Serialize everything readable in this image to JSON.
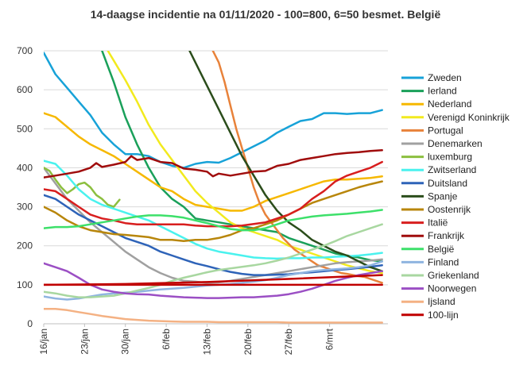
{
  "chart_data": {
    "type": "line",
    "title": "14-daagse incidentie na 01/11/2020 - 100=800, 6=50 besmet. België",
    "xlabel": "",
    "ylabel": "",
    "ylim": [
      0,
      700
    ],
    "yticks": [
      0,
      100,
      200,
      300,
      400,
      500,
      600,
      700
    ],
    "xlim": [
      0,
      59
    ],
    "xtick_labels": [
      "16/jan",
      "23/jan",
      "30/jan",
      "6/feb",
      "13/feb",
      "20/feb",
      "27/feb",
      "6/mrt"
    ],
    "xtick_positions": [
      0,
      7,
      14,
      21,
      28,
      35,
      42,
      49
    ],
    "grid": "horizontal",
    "legend_position": "right",
    "series": [
      {
        "name": "Zweden",
        "color": "#17a2d8",
        "x": [
          0,
          2,
          4,
          6,
          8,
          10,
          12,
          14,
          16,
          18,
          20,
          22,
          24,
          26,
          28,
          30,
          32,
          34,
          36,
          38,
          40,
          42,
          44,
          46,
          48,
          50,
          52,
          54,
          56,
          58
        ],
        "values": [
          695,
          640,
          605,
          570,
          535,
          490,
          460,
          435,
          435,
          430,
          415,
          405,
          400,
          410,
          415,
          413,
          425,
          440,
          455,
          470,
          490,
          505,
          520,
          525,
          540,
          540,
          538,
          540,
          540,
          548
        ]
      },
      {
        "name": "Ierland",
        "color": "#1aa05a",
        "x": [
          10,
          12,
          14,
          16,
          18,
          20,
          22,
          24,
          26,
          28,
          30,
          32,
          34,
          36,
          38,
          40,
          42,
          44,
          46,
          48,
          50,
          52,
          54,
          56,
          58
        ],
        "values": [
          700,
          620,
          530,
          460,
          400,
          350,
          320,
          300,
          270,
          265,
          260,
          255,
          250,
          245,
          240,
          235,
          220,
          210,
          200,
          190,
          180,
          175,
          170,
          163,
          160
        ]
      },
      {
        "name": "Nederland",
        "color": "#f6b800",
        "x": [
          0,
          2,
          4,
          6,
          8,
          10,
          12,
          14,
          16,
          18,
          20,
          22,
          24,
          26,
          28,
          30,
          32,
          34,
          36,
          38,
          40,
          42,
          44,
          46,
          48,
          50,
          52,
          54,
          56,
          58
        ],
        "values": [
          540,
          530,
          505,
          480,
          460,
          445,
          430,
          410,
          390,
          370,
          350,
          340,
          320,
          305,
          300,
          295,
          290,
          290,
          300,
          315,
          325,
          335,
          345,
          355,
          365,
          370,
          370,
          372,
          374,
          378
        ]
      },
      {
        "name": "Verenigd Koninkrijk",
        "color": "#f2ea1e",
        "x": [
          11,
          12,
          14,
          16,
          18,
          20,
          22,
          24,
          26,
          28,
          30,
          32,
          34,
          36,
          38,
          40,
          42,
          44,
          46,
          48,
          50,
          52,
          54,
          56,
          58
        ],
        "values": [
          700,
          675,
          625,
          570,
          510,
          460,
          420,
          380,
          340,
          310,
          285,
          260,
          245,
          235,
          225,
          215,
          200,
          190,
          180,
          170,
          160,
          150,
          142,
          135,
          130
        ]
      },
      {
        "name": "Portugal",
        "color": "#e8823a",
        "x": [
          29,
          30,
          31,
          32,
          33,
          34,
          35,
          36,
          37,
          38,
          39,
          40,
          41,
          42,
          43,
          44,
          45,
          46,
          47,
          48,
          49,
          50,
          51,
          52,
          53,
          54,
          55,
          56,
          57,
          58
        ],
        "values": [
          700,
          670,
          620,
          560,
          500,
          450,
          400,
          350,
          310,
          280,
          260,
          240,
          220,
          205,
          190,
          180,
          170,
          160,
          150,
          145,
          140,
          135,
          130,
          128,
          125,
          122,
          120,
          115,
          110,
          105
        ]
      },
      {
        "name": "Denemarken",
        "color": "#a0a0a0",
        "x": [
          0,
          2,
          4,
          6,
          8,
          10,
          12,
          14,
          16,
          18,
          20,
          22,
          24,
          26,
          28,
          30,
          32,
          34,
          36,
          38,
          40,
          42,
          44,
          46,
          48,
          50,
          52,
          54,
          56,
          58
        ],
        "values": [
          400,
          360,
          320,
          290,
          260,
          235,
          210,
          185,
          165,
          145,
          130,
          118,
          110,
          108,
          105,
          106,
          110,
          115,
          120,
          125,
          130,
          135,
          140,
          145,
          150,
          155,
          158,
          160,
          162,
          165
        ]
      },
      {
        "name": "luxemburg",
        "color": "#8cbf3f",
        "x": [
          0,
          1,
          2,
          3,
          4,
          5,
          6,
          7,
          8,
          9,
          10,
          11,
          12,
          13
        ],
        "values": [
          400,
          392,
          370,
          350,
          335,
          345,
          358,
          362,
          350,
          330,
          320,
          305,
          300,
          318
        ]
      },
      {
        "name": "Zwitserland",
        "color": "#4af2ee",
        "x": [
          0,
          2,
          4,
          6,
          8,
          10,
          12,
          14,
          16,
          18,
          20,
          22,
          24,
          26,
          28,
          30,
          32,
          34,
          36,
          38,
          40,
          42,
          44,
          46,
          48,
          50,
          52,
          54,
          56,
          58
        ],
        "values": [
          418,
          410,
          380,
          345,
          320,
          305,
          295,
          285,
          275,
          265,
          250,
          235,
          220,
          205,
          193,
          185,
          180,
          175,
          170,
          168,
          167,
          168,
          168,
          170,
          170,
          172,
          173,
          175,
          178,
          182
        ]
      },
      {
        "name": "Duitsland",
        "color": "#2e63b8",
        "x": [
          0,
          2,
          4,
          6,
          8,
          10,
          12,
          14,
          16,
          18,
          20,
          22,
          24,
          26,
          28,
          30,
          32,
          34,
          36,
          38,
          40,
          42,
          44,
          46,
          48,
          50,
          52,
          54,
          56,
          58
        ],
        "values": [
          330,
          320,
          300,
          280,
          265,
          250,
          235,
          220,
          210,
          200,
          185,
          175,
          165,
          155,
          148,
          140,
          133,
          128,
          125,
          125,
          126,
          127,
          130,
          132,
          135,
          138,
          140,
          143,
          146,
          150
        ]
      },
      {
        "name": "Spanje",
        "color": "#2b4d1b",
        "x": [
          25,
          26,
          28,
          30,
          32,
          34,
          36,
          38,
          40,
          42,
          44,
          46,
          48,
          50,
          52,
          54,
          56,
          58
        ],
        "values": [
          700,
          670,
          610,
          550,
          490,
          430,
          380,
          330,
          290,
          260,
          240,
          215,
          200,
          185,
          175,
          160,
          145,
          135
        ]
      },
      {
        "name": "Oostenrijk",
        "color": "#b8860b",
        "x": [
          0,
          2,
          4,
          6,
          8,
          10,
          12,
          14,
          16,
          18,
          20,
          22,
          24,
          26,
          28,
          30,
          32,
          34,
          36,
          38,
          40,
          42,
          44,
          46,
          48,
          50,
          52,
          54,
          56,
          58
        ],
        "values": [
          300,
          285,
          265,
          250,
          240,
          235,
          230,
          228,
          225,
          222,
          215,
          215,
          212,
          215,
          215,
          220,
          228,
          240,
          245,
          255,
          265,
          280,
          295,
          310,
          320,
          330,
          340,
          350,
          358,
          365
        ]
      },
      {
        "name": "Italië",
        "color": "#d81e1e",
        "x": [
          0,
          2,
          4,
          6,
          8,
          10,
          12,
          14,
          16,
          18,
          20,
          22,
          24,
          26,
          28,
          30,
          32,
          34,
          36,
          38,
          40,
          42,
          44,
          46,
          48,
          50,
          52,
          54,
          56,
          58
        ],
        "values": [
          345,
          340,
          320,
          300,
          280,
          270,
          265,
          258,
          255,
          255,
          255,
          255,
          255,
          252,
          250,
          250,
          250,
          252,
          256,
          260,
          270,
          280,
          295,
          320,
          340,
          365,
          380,
          390,
          400,
          415
        ]
      },
      {
        "name": "Frankrijk",
        "color": "#a00c0c",
        "x": [
          0,
          2,
          4,
          6,
          8,
          9,
          10,
          12,
          14,
          15,
          16,
          18,
          20,
          22,
          24,
          26,
          28,
          29,
          30,
          32,
          34,
          36,
          38,
          40,
          42,
          44,
          46,
          48,
          50,
          52,
          54,
          56,
          58
        ],
        "values": [
          375,
          380,
          385,
          390,
          400,
          412,
          402,
          408,
          415,
          430,
          420,
          425,
          415,
          412,
          398,
          395,
          390,
          378,
          385,
          380,
          385,
          390,
          392,
          405,
          410,
          420,
          425,
          430,
          435,
          438,
          440,
          443,
          445
        ]
      },
      {
        "name": "België",
        "color": "#3de06a",
        "x": [
          0,
          2,
          4,
          6,
          8,
          10,
          12,
          14,
          16,
          18,
          20,
          22,
          24,
          26,
          28,
          30,
          32,
          34,
          36,
          38,
          40,
          42,
          44,
          46,
          48,
          50,
          52,
          54,
          56,
          58
        ],
        "values": [
          245,
          248,
          248,
          250,
          255,
          260,
          265,
          270,
          275,
          278,
          278,
          276,
          272,
          265,
          258,
          250,
          243,
          240,
          240,
          245,
          255,
          265,
          270,
          275,
          278,
          280,
          282,
          285,
          288,
          292
        ]
      },
      {
        "name": "Finland",
        "color": "#8fb4e0",
        "x": [
          0,
          2,
          4,
          6,
          8,
          10,
          12,
          14,
          16,
          18,
          20,
          22,
          24,
          26,
          28,
          30,
          32,
          34,
          36,
          38,
          40,
          42,
          44,
          46,
          48,
          50,
          52,
          54,
          56,
          58
        ],
        "values": [
          70,
          65,
          62,
          65,
          70,
          75,
          78,
          80,
          82,
          85,
          88,
          90,
          92,
          95,
          98,
          100,
          102,
          105,
          108,
          112,
          118,
          125,
          130,
          135,
          138,
          140,
          142,
          145,
          150,
          160
        ]
      },
      {
        "name": "Griekenland",
        "color": "#a8d7a0",
        "x": [
          0,
          2,
          4,
          6,
          8,
          10,
          12,
          14,
          16,
          18,
          20,
          22,
          24,
          26,
          28,
          30,
          32,
          34,
          36,
          38,
          40,
          42,
          44,
          46,
          48,
          50,
          52,
          54,
          56,
          58
        ],
        "values": [
          82,
          78,
          72,
          68,
          68,
          70,
          72,
          78,
          85,
          92,
          100,
          110,
          118,
          125,
          132,
          138,
          142,
          146,
          150,
          155,
          162,
          170,
          180,
          190,
          200,
          212,
          225,
          235,
          245,
          255
        ]
      },
      {
        "name": "Noorwegen",
        "color": "#9b4fc4",
        "x": [
          0,
          2,
          4,
          6,
          8,
          10,
          12,
          14,
          16,
          18,
          20,
          22,
          24,
          26,
          28,
          30,
          32,
          34,
          36,
          38,
          40,
          42,
          44,
          46,
          48,
          50,
          52,
          54,
          56,
          58
        ],
        "values": [
          155,
          145,
          135,
          118,
          100,
          88,
          82,
          78,
          76,
          75,
          72,
          70,
          68,
          67,
          66,
          66,
          67,
          68,
          68,
          70,
          72,
          76,
          82,
          90,
          100,
          110,
          118,
          125,
          130,
          135
        ]
      },
      {
        "name": "Ijsland",
        "color": "#f4b183",
        "x": [
          0,
          2,
          4,
          6,
          8,
          10,
          12,
          14,
          16,
          18,
          20,
          22,
          24,
          26,
          28,
          30,
          32,
          34,
          36,
          38,
          40,
          42,
          44,
          46,
          48,
          50,
          52,
          54,
          56,
          58
        ],
        "values": [
          38,
          38,
          35,
          30,
          25,
          20,
          16,
          12,
          10,
          8,
          7,
          6,
          5,
          5,
          5,
          4,
          4,
          4,
          4,
          4,
          4,
          3,
          3,
          3,
          3,
          3,
          3,
          3,
          3,
          3
        ]
      },
      {
        "name": "100-lijn",
        "color": "#c00000",
        "x": [
          0,
          58
        ],
        "values": [
          100,
          100
        ]
      },
      {
        "name": "",
        "color": "#c00000",
        "x": [
          0,
          14,
          28,
          42,
          58
        ],
        "values": [
          100,
          102,
          107,
          115,
          125
        ]
      }
    ]
  }
}
